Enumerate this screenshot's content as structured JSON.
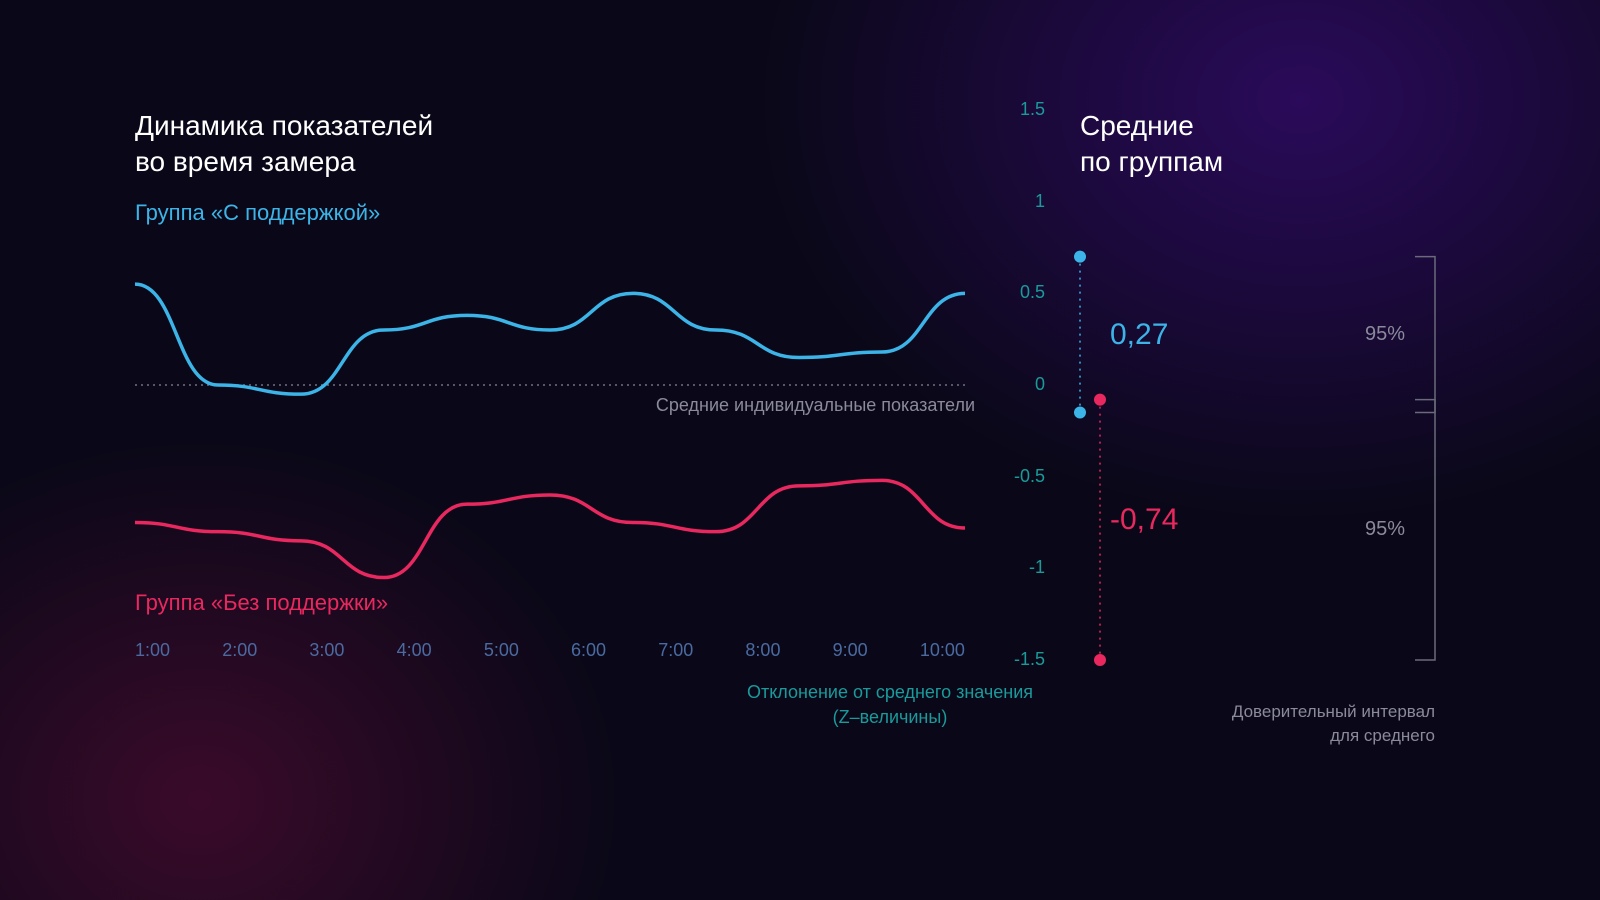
{
  "main": {
    "title_line1": "Динамика показателей",
    "title_line2": "во время замера",
    "group_a_label": "Группа «С поддержкой»",
    "group_b_label": "Группа «Без поддержки»",
    "zero_line_label": "Средние индивидуальные показатели",
    "axis_caption_line1": "Отклонение от среднего значения",
    "axis_caption_line2": "(Z–величины)"
  },
  "chart": {
    "type": "line",
    "x_labels": [
      "1:00",
      "2:00",
      "3:00",
      "4:00",
      "5:00",
      "6:00",
      "7:00",
      "8:00",
      "9:00",
      "10:00"
    ],
    "y_ticks": [
      {
        "v": 1.5,
        "label": "1.5"
      },
      {
        "v": 1.0,
        "label": "1"
      },
      {
        "v": 0.5,
        "label": "0.5"
      },
      {
        "v": 0.0,
        "label": "0"
      },
      {
        "v": -0.5,
        "label": "-0.5"
      },
      {
        "v": -1.0,
        "label": "-1"
      },
      {
        "v": -1.5,
        "label": "-1.5"
      }
    ],
    "ylim": [
      -1.5,
      1.5
    ],
    "series_a": {
      "color": "#3cb4e8",
      "line_width": 3.5,
      "values": [
        0.55,
        0.0,
        -0.05,
        0.3,
        0.38,
        0.3,
        0.5,
        0.3,
        0.15,
        0.18,
        0.5
      ]
    },
    "series_b": {
      "color": "#e8285e",
      "line_width": 3.5,
      "values": [
        -0.75,
        -0.8,
        -0.85,
        -1.05,
        -0.65,
        -0.6,
        -0.75,
        -0.8,
        -0.55,
        -0.52,
        -0.78
      ]
    },
    "zero_line_color": "#707080",
    "x_tick_color": "#4a6aa0",
    "y_tick_color": "#1a9a9a",
    "axis_fontsize": 18
  },
  "right": {
    "title_line1": "Средние",
    "title_line2": "по группам",
    "mean_a": {
      "value": "0,27",
      "color": "#3cb4e8",
      "y": 0.27,
      "ci_low": -0.15,
      "ci_high": 0.7
    },
    "mean_b": {
      "value": "-0,74",
      "color": "#e8285e",
      "y": -0.74,
      "ci_low": -1.5,
      "ci_high": -0.08
    },
    "ci_pct": "95%",
    "bracket_color": "#6a6a7a",
    "caption_line1": "Доверительный интервал",
    "caption_line2": "для среднего"
  },
  "colors": {
    "text_muted": "#8a8a9a"
  }
}
